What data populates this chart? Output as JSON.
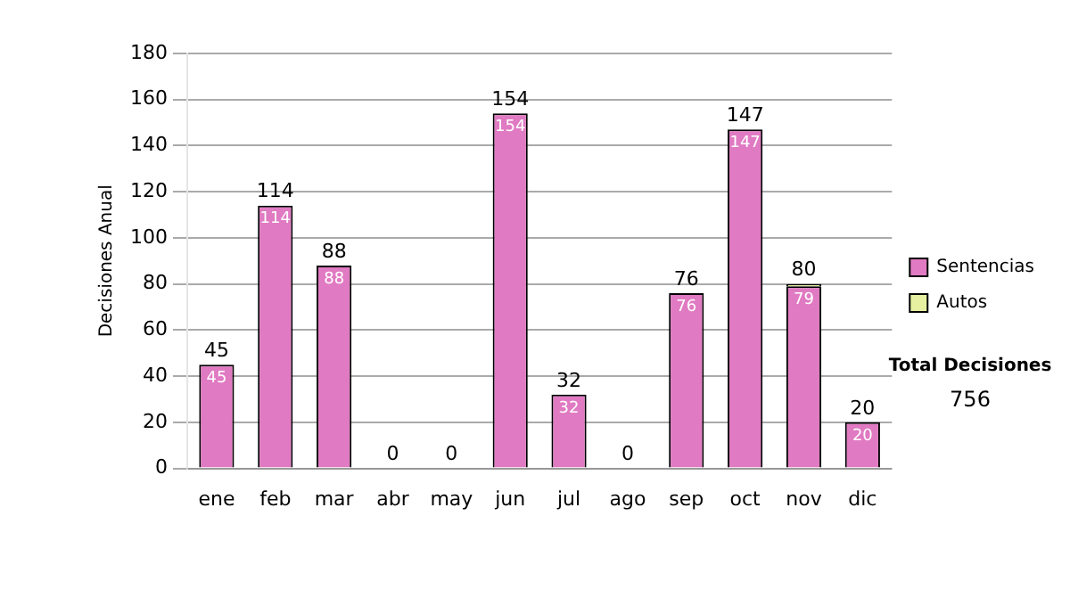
{
  "chart_data": {
    "type": "bar",
    "ylabel": "Decisiones Anual",
    "categories": [
      "ene",
      "feb",
      "mar",
      "abr",
      "may",
      "jun",
      "jul",
      "ago",
      "sep",
      "oct",
      "nov",
      "dic"
    ],
    "series": [
      {
        "name": "Sentencias",
        "color": "#e07ac2",
        "values": [
          45,
          114,
          88,
          0,
          0,
          154,
          32,
          0,
          76,
          147,
          79,
          20
        ],
        "value_labels": [
          "45",
          "114",
          "88",
          null,
          null,
          "154",
          "32",
          null,
          "76",
          "147",
          "79",
          "20"
        ]
      },
      {
        "name": "Autos",
        "color": "#e6f0a0",
        "values": [
          0,
          0,
          0,
          0,
          0,
          0,
          0,
          0,
          0,
          0,
          1,
          0
        ]
      }
    ],
    "stacked": true,
    "totals": [
      "45",
      "114",
      "88",
      "0",
      "0",
      "154",
      "32",
      "0",
      "76",
      "147",
      "80",
      "20"
    ],
    "ylim": [
      0,
      180
    ],
    "yticks": [
      0,
      20,
      40,
      60,
      80,
      100,
      120,
      140,
      160,
      180
    ],
    "grid": "y",
    "legend": "right",
    "annotations": [
      "Total Decisiones",
      "756"
    ]
  }
}
